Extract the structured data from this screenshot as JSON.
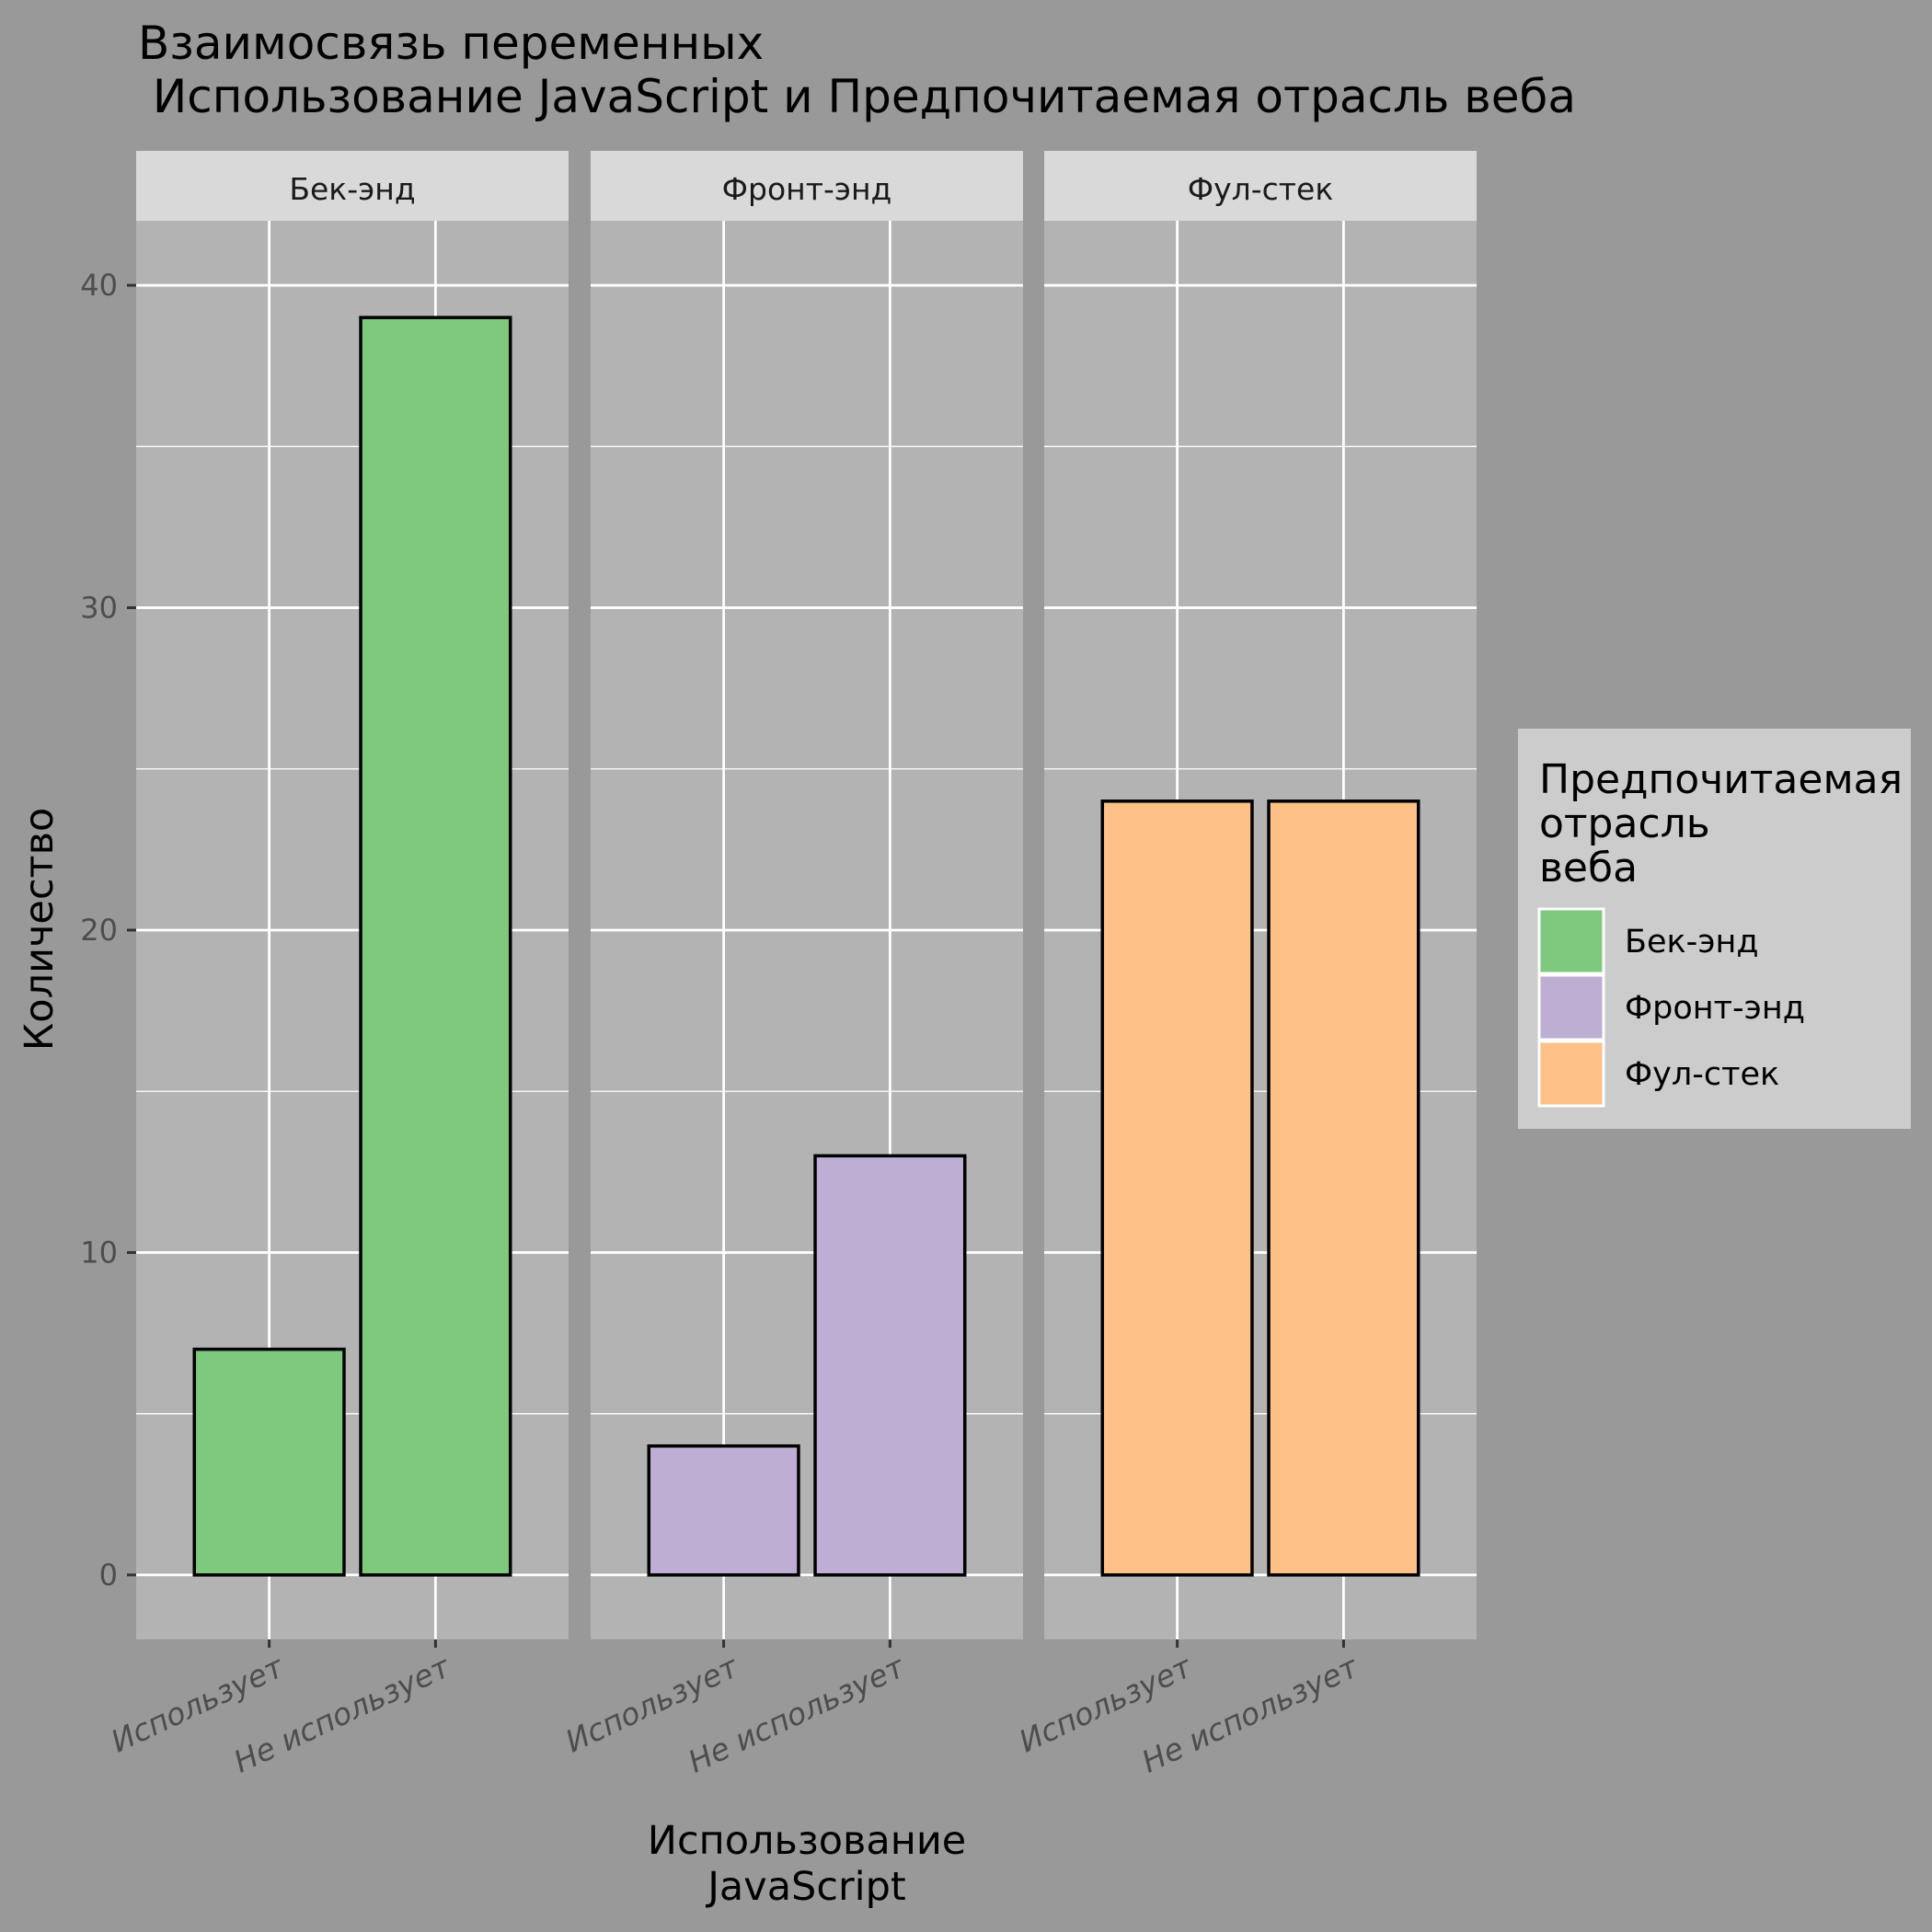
{
  "chart_data": {
    "type": "bar",
    "title": [
      "Взаимосвязь переменных",
      " Использование JavaScript и Предпочитаемая отрасль веба"
    ],
    "xlabel": [
      "Использование",
      "JavaScript"
    ],
    "ylabel": "Количество",
    "ylim": [
      -2,
      42
    ],
    "yticks": [
      0,
      10,
      20,
      30,
      40
    ],
    "grid": true,
    "facets": [
      {
        "label": "Бек-энд",
        "categories": [
          "Использует",
          "Не использует"
        ],
        "values": [
          7,
          39
        ],
        "color": "#7FC97F"
      },
      {
        "label": "Фронт-энд",
        "categories": [
          "Использует",
          "Не использует"
        ],
        "values": [
          4,
          13
        ],
        "color": "#BEAED4"
      },
      {
        "label": "Фул-стек",
        "categories": [
          "Использует",
          "Не использует"
        ],
        "values": [
          24,
          24
        ],
        "color": "#FDC086"
      }
    ],
    "legend": {
      "title": [
        "Предпочитаемая",
        "отрасль",
        "веба"
      ],
      "position": "right",
      "items": [
        {
          "label": "Бек-энд",
          "color": "#7FC97F"
        },
        {
          "label": "Фронт-энд",
          "color": "#BEAED4"
        },
        {
          "label": "Фул-стек",
          "color": "#FDC086"
        }
      ]
    }
  }
}
